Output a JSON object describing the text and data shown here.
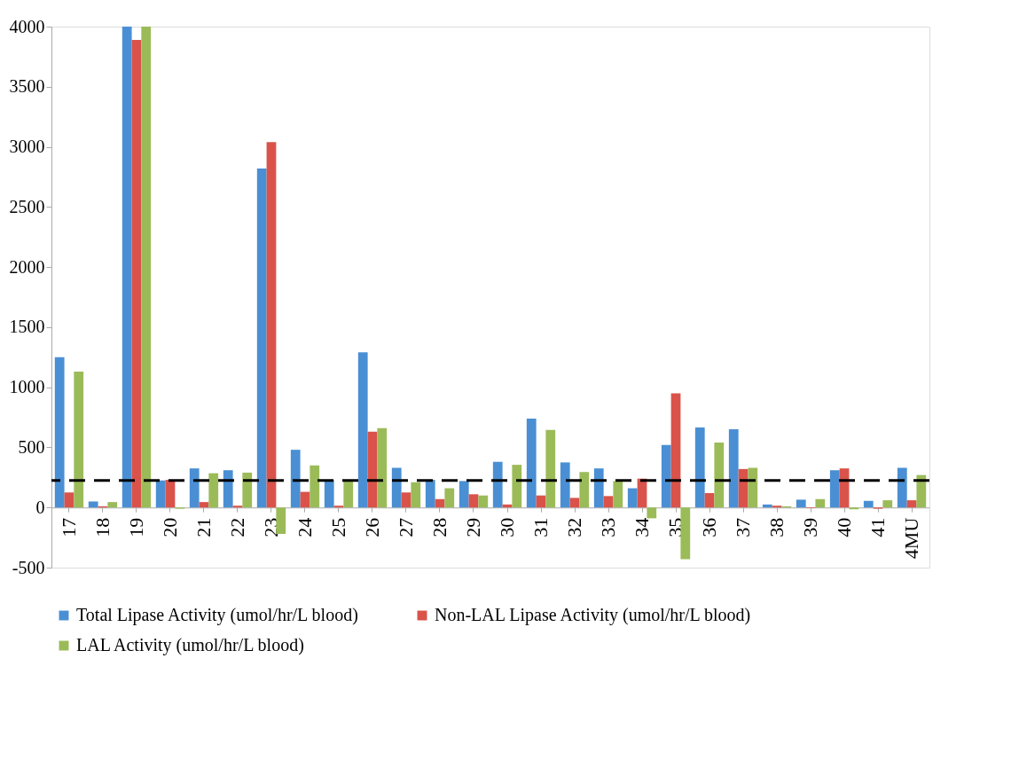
{
  "chart_data": {
    "type": "bar",
    "categories": [
      "17",
      "18",
      "19",
      "20",
      "21",
      "22",
      "23",
      "24",
      "25",
      "26",
      "27",
      "28",
      "29",
      "30",
      "31",
      "32",
      "33",
      "34",
      "35",
      "36",
      "37",
      "38",
      "39",
      "40",
      "41",
      "4MU"
    ],
    "series": [
      {
        "name": "Total Lipase Activity (umol/hr/L blood)",
        "color": "#4a8fd4",
        "values": [
          1250,
          50,
          4000,
          225,
          325,
          310,
          2820,
          480,
          230,
          1290,
          330,
          230,
          220,
          380,
          740,
          375,
          325,
          160,
          520,
          665,
          650,
          25,
          65,
          310,
          55,
          330
        ]
      },
      {
        "name": "Non-LAL Lipase Activity (umol/hr/L blood)",
        "color": "#d9534a",
        "values": [
          125,
          10,
          3890,
          230,
          45,
          15,
          3040,
          130,
          15,
          630,
          125,
          70,
          110,
          25,
          100,
          80,
          95,
          240,
          950,
          120,
          320,
          15,
          -5,
          325,
          -10,
          60
        ]
      },
      {
        "name": "LAL Activity (umol/hr/L blood)",
        "color": "#9bbb59",
        "values": [
          1130,
          45,
          4000,
          -10,
          285,
          290,
          -220,
          350,
          220,
          660,
          210,
          160,
          100,
          355,
          645,
          295,
          220,
          -90,
          -430,
          540,
          330,
          10,
          70,
          -15,
          60,
          270
        ]
      }
    ],
    "ylim": [
      -500,
      4000
    ],
    "yticks": [
      -500,
      0,
      500,
      1000,
      1500,
      2000,
      2500,
      3000,
      3500,
      4000
    ],
    "ref_lines": [
      {
        "axis": "y",
        "value": 225,
        "color": "#000000",
        "line_style": "dashed"
      }
    ],
    "grid": false,
    "legend": "bottom"
  }
}
